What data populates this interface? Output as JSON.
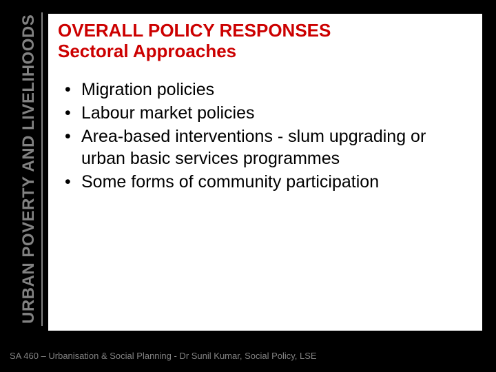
{
  "slide": {
    "background_color": "#000000",
    "content_background_color": "#ffffff",
    "sidebar": {
      "text": "URBAN POVERTY AND LIVELIHOODS",
      "color": "#828282",
      "fontsize": 24,
      "fontweight": "bold",
      "line_color": "#828282"
    },
    "heading": {
      "line1": "OVERALL POLICY RESPONSES",
      "line2": "Sectoral Approaches",
      "color": "#cc0000",
      "fontsize": 26,
      "fontweight": "bold"
    },
    "bullets": {
      "items": [
        "Migration policies",
        "Labour market policies",
        "Area-based interventions - slum upgrading or urban basic services programmes",
        "Some forms of community participation"
      ],
      "color": "#000000",
      "fontsize": 25
    },
    "footer": {
      "text": "SA 460 – Urbanisation & Social Planning - Dr Sunil Kumar, Social Policy, LSE",
      "color": "#828282",
      "fontsize": 13
    }
  }
}
